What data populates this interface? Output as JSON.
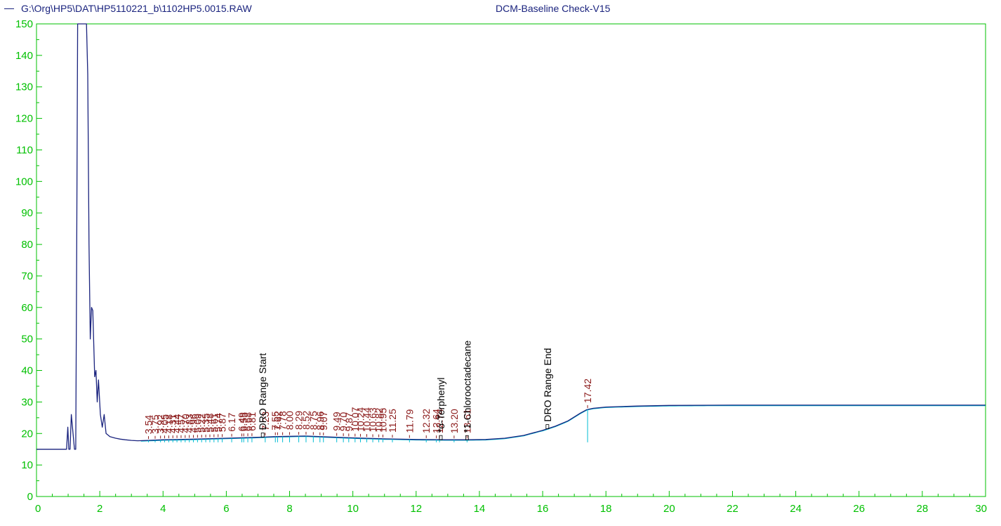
{
  "header": {
    "file_path": "G:\\Org\\HP5\\DAT\\HP5110221_b\\1102HP5.0015.RAW",
    "method": "DCM-Baseline Check-V15"
  },
  "colors": {
    "axis": "#00c000",
    "trace": "#1a237e",
    "baseline": "#00bcd4",
    "peak_label": "#8b1a1a",
    "annotation": "#000000"
  },
  "chart_data": {
    "type": "line",
    "title": "",
    "xlabel": "",
    "ylabel": "",
    "xlim": [
      0,
      30
    ],
    "ylim": [
      0,
      150
    ],
    "x_ticks": [
      "0",
      "2",
      "4",
      "6",
      "8",
      "10",
      "12",
      "14",
      "16",
      "18",
      "20",
      "22",
      "24",
      "26",
      "28",
      "30"
    ],
    "y_ticks": [
      "0",
      "10",
      "20",
      "30",
      "40",
      "50",
      "60",
      "70",
      "80",
      "90",
      "100",
      "110",
      "120",
      "130",
      "140",
      "150"
    ],
    "grid": false,
    "series": [
      {
        "name": "",
        "x": [
          0,
          0.95,
          0.99,
          1.02,
          1.06,
          1.1,
          1.2,
          1.24,
          1.27,
          1.3,
          1.34,
          1.4,
          1.5,
          1.58,
          1.62,
          1.66,
          1.7,
          1.74,
          1.78,
          1.84,
          1.88,
          1.92,
          1.96,
          2.02,
          2.08,
          2.14,
          2.2,
          2.26,
          2.32,
          2.4,
          2.5,
          2.65,
          2.8,
          3.0,
          3.2,
          3.5,
          4.0,
          5.0,
          6.0,
          7.0,
          7.5,
          8.0,
          8.5,
          9.0,
          9.5,
          10.0,
          11.0,
          12.0,
          13.0,
          13.6,
          14.2,
          14.8,
          15.4,
          16.0,
          16.4,
          16.8,
          17.2,
          17.4,
          17.6,
          18.0,
          19.0,
          20.0,
          22.0,
          24.0,
          26.0,
          28.0,
          30.0
        ],
        "y": [
          15,
          15,
          22,
          15,
          15,
          26,
          15,
          15,
          75,
          150,
          150,
          150,
          150,
          150,
          134,
          80,
          50,
          60,
          59,
          38,
          40,
          30,
          37,
          26,
          22,
          26,
          20,
          19.5,
          19,
          18.8,
          18.5,
          18.2,
          18,
          17.8,
          17.7,
          17.8,
          18,
          18.2,
          18.5,
          18.8,
          19,
          19.1,
          19.2,
          19,
          18.8,
          18.6,
          18.3,
          18.1,
          18.0,
          18.0,
          18.1,
          18.5,
          19.4,
          21,
          22.3,
          24,
          26.5,
          27.6,
          28.0,
          28.4,
          28.7,
          28.9,
          29.0,
          29.0,
          29.0,
          29.0,
          29.0
        ]
      }
    ],
    "peak_labels": [
      {
        "x": 3.54,
        "text": "3.54"
      },
      {
        "x": 3.75,
        "text": "3.75"
      },
      {
        "x": 3.92,
        "text": "3.92"
      },
      {
        "x": 4.05,
        "text": "4.05"
      },
      {
        "x": 4.18,
        "text": "4.18"
      },
      {
        "x": 4.31,
        "text": "4.31"
      },
      {
        "x": 4.44,
        "text": "4.44"
      },
      {
        "x": 4.57,
        "text": "4.57"
      },
      {
        "x": 4.7,
        "text": "4.70"
      },
      {
        "x": 4.83,
        "text": "4.83"
      },
      {
        "x": 4.96,
        "text": "4.96"
      },
      {
        "x": 5.09,
        "text": "5.09"
      },
      {
        "x": 5.22,
        "text": "5.22"
      },
      {
        "x": 5.35,
        "text": "5.35"
      },
      {
        "x": 5.48,
        "text": "5.48"
      },
      {
        "x": 5.61,
        "text": "5.61"
      },
      {
        "x": 5.74,
        "text": "5.74"
      },
      {
        "x": 5.87,
        "text": "5.87"
      },
      {
        "x": 6.17,
        "text": "6.17"
      },
      {
        "x": 6.49,
        "text": "6.49"
      },
      {
        "x": 6.55,
        "text": "6.55"
      },
      {
        "x": 6.68,
        "text": "6.68"
      },
      {
        "x": 6.81,
        "text": "6.81"
      },
      {
        "x": 7.23,
        "text": "7.23"
      },
      {
        "x": 7.55,
        "text": "7.55"
      },
      {
        "x": 7.62,
        "text": "7.62"
      },
      {
        "x": 7.78,
        "text": "7.78"
      },
      {
        "x": 8.0,
        "text": "8.00"
      },
      {
        "x": 8.29,
        "text": "8.29"
      },
      {
        "x": 8.52,
        "text": "8.52"
      },
      {
        "x": 8.75,
        "text": "8.75"
      },
      {
        "x": 8.96,
        "text": "8.96"
      },
      {
        "x": 9.07,
        "text": "9.07"
      },
      {
        "x": 9.49,
        "text": "9.49"
      },
      {
        "x": 9.7,
        "text": "9.70"
      },
      {
        "x": 9.87,
        "text": "9.87"
      },
      {
        "x": 10.07,
        "text": "10.07"
      },
      {
        "x": 10.24,
        "text": "10.24"
      },
      {
        "x": 10.44,
        "text": "10.44"
      },
      {
        "x": 10.63,
        "text": "10.63"
      },
      {
        "x": 10.82,
        "text": "10.82"
      },
      {
        "x": 10.95,
        "text": "10.95"
      },
      {
        "x": 11.25,
        "text": "11.25"
      },
      {
        "x": 11.79,
        "text": "11.79"
      },
      {
        "x": 12.32,
        "text": "12.32"
      },
      {
        "x": 12.64,
        "text": "12.64"
      },
      {
        "x": 12.74,
        "text": "12.74"
      },
      {
        "x": 13.2,
        "text": "13.20"
      },
      {
        "x": 13.61,
        "text": "13.61"
      },
      {
        "x": 17.42,
        "text": "17.42"
      }
    ],
    "annotations": [
      {
        "x": 7.15,
        "text": "DRO Range Start"
      },
      {
        "x": 12.78,
        "text": "*o-Terphenyl"
      },
      {
        "x": 13.61,
        "text": "*1-Chlorooctadecane"
      },
      {
        "x": 16.15,
        "text": "DRO Range End"
      }
    ]
  }
}
